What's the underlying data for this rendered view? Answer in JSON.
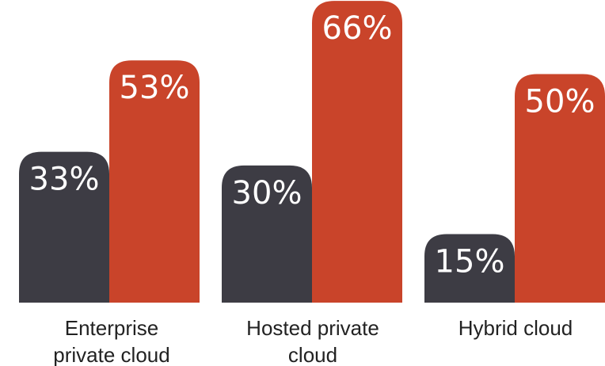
{
  "chart_data": {
    "type": "bar",
    "categories": [
      [
        "Enterprise",
        "private cloud"
      ],
      [
        "Hosted private",
        "cloud"
      ],
      [
        "Hybrid cloud"
      ]
    ],
    "series": [
      {
        "values": [
          33,
          30,
          15
        ],
        "labels": [
          "33%",
          "30%",
          "15%"
        ],
        "color": "#3d3c44"
      },
      {
        "values": [
          53,
          66,
          50
        ],
        "labels": [
          "53%",
          "66%",
          "50%"
        ],
        "color": "#c9442a"
      }
    ],
    "ylim": [
      0,
      100
    ],
    "grid": false,
    "legend": "none"
  }
}
